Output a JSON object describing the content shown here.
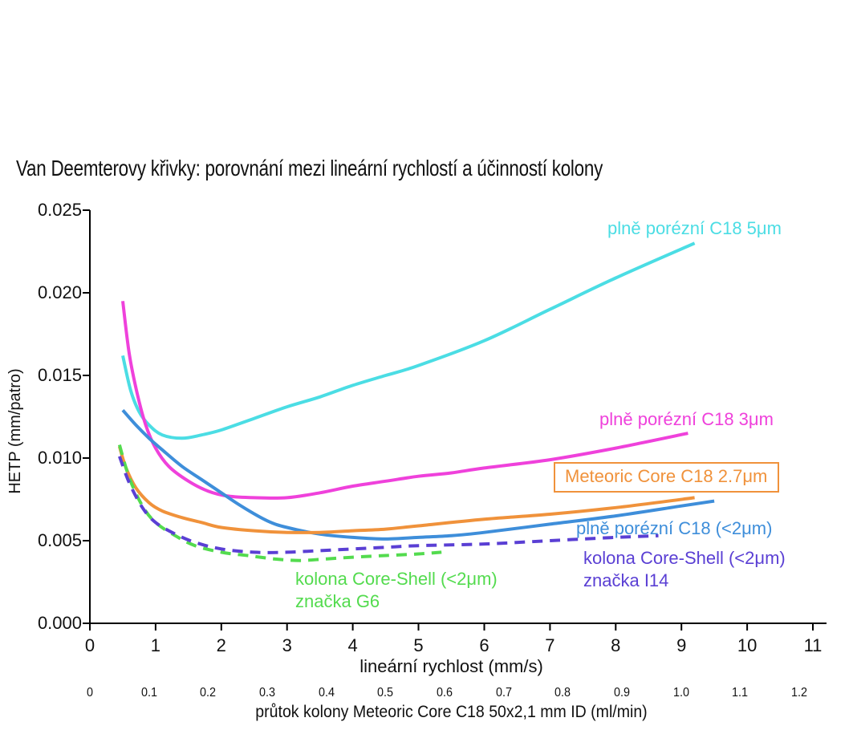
{
  "chart_data": {
    "type": "line",
    "title": "Van Deemterovy křivky: porovnání mezi lineární rychlostí a účinností kolony",
    "xlabel": "lineární rychlost (mm/s)",
    "ylabel": "HETP (mm/patro)",
    "x2label": "průtok kolony Meteoric Core C18 50x2,1 mm ID (ml/min)",
    "xlim": [
      0,
      11
    ],
    "ylim": [
      0,
      0.025
    ],
    "x2lim": [
      0,
      1.2
    ],
    "grid": false,
    "legend_position": "inline-curve-labels",
    "axis_color": "#000000",
    "x_ticks": [
      0,
      1,
      2,
      3,
      4,
      5,
      6,
      7,
      8,
      9,
      10,
      11
    ],
    "x_tick_labels": [
      "0",
      "1",
      "2",
      "3",
      "4",
      "5",
      "6",
      "7",
      "8",
      "9",
      "10",
      "11"
    ],
    "y_ticks": [
      0,
      0.005,
      0.01,
      0.015,
      0.02,
      0.025
    ],
    "y_tick_labels": [
      "0.000",
      "0.005",
      "0.010",
      "0.015",
      "0.020",
      "0.025"
    ],
    "x2_ticks": [
      0,
      0.1,
      0.2,
      0.3,
      0.4,
      0.5,
      0.6,
      0.7,
      0.8,
      0.9,
      1.0,
      1.1,
      1.2
    ],
    "x2_tick_labels": [
      "0",
      "0.1",
      "0.2",
      "0.3",
      "0.4",
      "0.5",
      "0.6",
      "0.7",
      "0.8",
      "0.9",
      "1.0",
      "1.1",
      "1.2"
    ],
    "series": [
      {
        "name": "plně porézní C18 5μm",
        "label_lines": [
          "plně porézní C18 5μm"
        ],
        "color": "#4BDDE4",
        "style": "solid",
        "points": [
          [
            0.5,
            0.0162
          ],
          [
            0.62,
            0.0141
          ],
          [
            0.75,
            0.0128
          ],
          [
            0.9,
            0.012
          ],
          [
            1.1,
            0.0114
          ],
          [
            1.4,
            0.0112
          ],
          [
            1.7,
            0.0114
          ],
          [
            2,
            0.0117
          ],
          [
            2.5,
            0.0124
          ],
          [
            3,
            0.0131
          ],
          [
            3.5,
            0.0137
          ],
          [
            4,
            0.0144
          ],
          [
            4.5,
            0.015
          ],
          [
            5,
            0.0156
          ],
          [
            6,
            0.0171
          ],
          [
            7,
            0.019
          ],
          [
            8,
            0.0209
          ],
          [
            9.2,
            0.023
          ]
        ]
      },
      {
        "name": "plně porézní C18 3μm",
        "label_lines": [
          "plně porézní C18 3μm"
        ],
        "color": "#EF41DB",
        "style": "solid",
        "points": [
          [
            0.5,
            0.0195
          ],
          [
            0.6,
            0.0163
          ],
          [
            0.72,
            0.0139
          ],
          [
            0.85,
            0.012
          ],
          [
            1,
            0.0106
          ],
          [
            1.2,
            0.0095
          ],
          [
            1.5,
            0.0086
          ],
          [
            1.8,
            0.008
          ],
          [
            2.1,
            0.0077
          ],
          [
            2.5,
            0.0076
          ],
          [
            3,
            0.0076
          ],
          [
            3.5,
            0.0079
          ],
          [
            4,
            0.0083
          ],
          [
            4.5,
            0.0086
          ],
          [
            5,
            0.0089
          ],
          [
            5.5,
            0.0091
          ],
          [
            6,
            0.0094
          ],
          [
            7,
            0.0099
          ],
          [
            8,
            0.0106
          ],
          [
            9.1,
            0.0115
          ]
        ]
      },
      {
        "name": "plně porézní C18 (<2μm)",
        "label_lines": [
          "plně porézní C18 (<2μm)"
        ],
        "color": "#3E8EDA",
        "style": "solid",
        "points": [
          [
            0.5,
            0.0129
          ],
          [
            0.7,
            0.012
          ],
          [
            0.9,
            0.0112
          ],
          [
            1.1,
            0.0105
          ],
          [
            1.4,
            0.0095
          ],
          [
            1.7,
            0.0087
          ],
          [
            2,
            0.0079
          ],
          [
            2.3,
            0.0071
          ],
          [
            2.7,
            0.0062
          ],
          [
            3,
            0.0058
          ],
          [
            3.5,
            0.0054
          ],
          [
            4,
            0.0052
          ],
          [
            4.5,
            0.0051
          ],
          [
            5,
            0.0052
          ],
          [
            5.5,
            0.0053
          ],
          [
            6,
            0.0055
          ],
          [
            7,
            0.006
          ],
          [
            8,
            0.0065
          ],
          [
            9,
            0.0071
          ],
          [
            9.5,
            0.0074
          ]
        ]
      },
      {
        "name": "Meteoric Core C18 2.7μm",
        "label_lines": [
          "Meteoric Core C18 2.7μm"
        ],
        "color": "#F0923B",
        "style": "solid",
        "boxed_label": true,
        "points": [
          [
            0.45,
            0.0107
          ],
          [
            0.55,
            0.0094
          ],
          [
            0.7,
            0.0082
          ],
          [
            0.9,
            0.0073
          ],
          [
            1.1,
            0.0068
          ],
          [
            1.4,
            0.0064
          ],
          [
            1.7,
            0.0061
          ],
          [
            2,
            0.0058
          ],
          [
            2.5,
            0.0056
          ],
          [
            3,
            0.0055
          ],
          [
            3.5,
            0.0055
          ],
          [
            4,
            0.0056
          ],
          [
            4.5,
            0.0057
          ],
          [
            5,
            0.0059
          ],
          [
            6,
            0.0063
          ],
          [
            7,
            0.0066
          ],
          [
            8,
            0.007
          ],
          [
            9.2,
            0.0076
          ]
        ]
      },
      {
        "name": "kolona Core-Shell (<2μm) značka G6",
        "label_lines": [
          "kolona Core-Shell (<2μm)",
          "značka G6"
        ],
        "color": "#53DB4E",
        "style": "dashed",
        "points": [
          [
            0.45,
            0.0108
          ],
          [
            0.6,
            0.0088
          ],
          [
            0.8,
            0.0071
          ],
          [
            1,
            0.0061
          ],
          [
            1.3,
            0.0053
          ],
          [
            1.6,
            0.0047
          ],
          [
            2,
            0.0043
          ],
          [
            2.4,
            0.0041
          ],
          [
            2.8,
            0.0039
          ],
          [
            3.2,
            0.0038
          ],
          [
            3.6,
            0.0039
          ],
          [
            4,
            0.004
          ],
          [
            4.5,
            0.0041
          ],
          [
            5,
            0.0042
          ],
          [
            5.35,
            0.0043
          ]
        ]
      },
      {
        "name": "kolona Core-Shell (<2μm) značka I14",
        "label_lines": [
          "kolona Core-Shell (<2μm)",
          "značka I14"
        ],
        "color": "#5A3FD4",
        "style": "dashed",
        "points": [
          [
            0.45,
            0.0101
          ],
          [
            0.6,
            0.0085
          ],
          [
            0.8,
            0.007
          ],
          [
            1,
            0.0061
          ],
          [
            1.3,
            0.0054
          ],
          [
            1.6,
            0.0049
          ],
          [
            2,
            0.0045
          ],
          [
            2.5,
            0.0043
          ],
          [
            3,
            0.0043
          ],
          [
            3.5,
            0.0044
          ],
          [
            4,
            0.0045
          ],
          [
            4.5,
            0.0046
          ],
          [
            5,
            0.0047
          ],
          [
            6,
            0.0048
          ],
          [
            7,
            0.005
          ],
          [
            8,
            0.0052
          ],
          [
            8.65,
            0.0053
          ]
        ]
      }
    ]
  }
}
